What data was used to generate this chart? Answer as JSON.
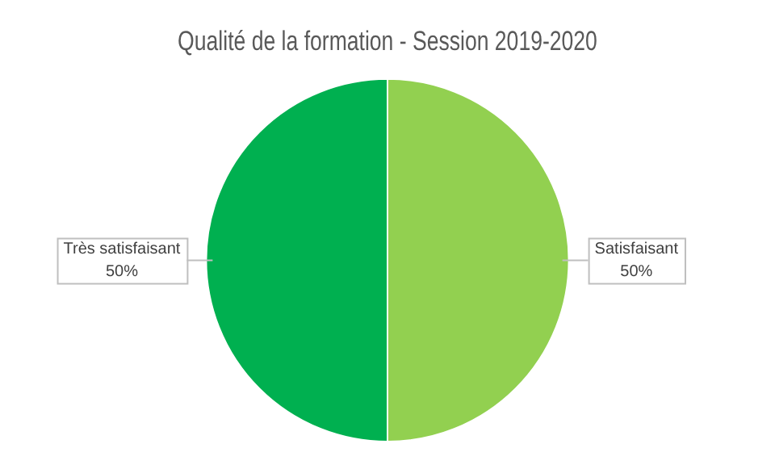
{
  "chart_data": {
    "type": "pie",
    "title": "Qualité de la formation - Session 2019-2020",
    "categories": [
      "Satisfaisant",
      "Très satisfaisant"
    ],
    "values": [
      50,
      50
    ],
    "colors": [
      "#92d050",
      "#00b050"
    ],
    "value_labels": [
      "50%",
      "50%"
    ],
    "legend": false
  }
}
